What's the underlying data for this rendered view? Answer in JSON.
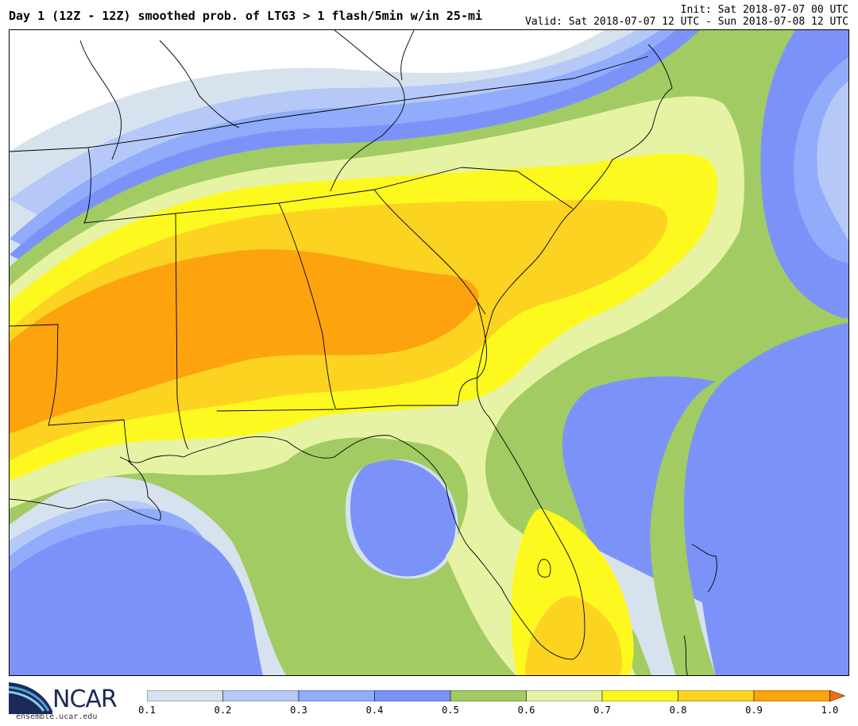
{
  "header": {
    "title": "Day 1 (12Z - 12Z) smoothed prob. of LTG3 > 1 flash/5min w/in 25-mi",
    "init": "Init: Sat 2018-07-07 00 UTC",
    "valid": "Valid: Sat 2018-07-07 12 UTC - Sun 2018-07-08 12 UTC"
  },
  "logo": {
    "name": "NCAR",
    "url": "ensemble.ucar.edu"
  },
  "colorbar": {
    "ticks": [
      "0.1",
      "0.2",
      "0.3",
      "0.4",
      "0.5",
      "0.6",
      "0.7",
      "0.8",
      "0.9",
      "1.0"
    ],
    "colors": [
      "#d6e2ed",
      "#b6c8f7",
      "#90acfa",
      "#7b93f9",
      "#a2cb63",
      "#e6f3a5",
      "#fdf91e",
      "#fdd322",
      "#fca30e"
    ],
    "extend_color": "#f26c0c"
  }
}
